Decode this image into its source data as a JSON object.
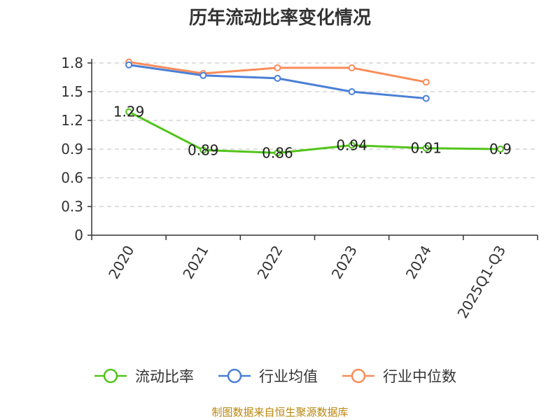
{
  "chart_data": {
    "type": "line",
    "title": "历年流动比率变化情况",
    "categories": [
      "2020",
      "2021",
      "2022",
      "2023",
      "2024",
      "2025Q1-Q3"
    ],
    "series": [
      {
        "name": "流动比率",
        "color": "#52c41a",
        "values": [
          1.29,
          0.89,
          0.86,
          0.94,
          0.91,
          0.9
        ],
        "labels": [
          "1.29",
          "0.89",
          "0.86",
          "0.94",
          "0.91",
          "0.9"
        ]
      },
      {
        "name": "行业均值",
        "color": "#4a7fd6",
        "values": [
          1.78,
          1.67,
          1.64,
          1.5,
          1.43,
          null
        ]
      },
      {
        "name": "行业中位数",
        "color": "#fa8c5a",
        "values": [
          1.81,
          1.69,
          1.75,
          1.75,
          1.6,
          null
        ]
      }
    ],
    "y_ticks": [
      "0",
      "0.3",
      "0.6",
      "0.9",
      "1.2",
      "1.5",
      "1.8"
    ],
    "ylim": [
      0,
      1.8
    ],
    "grid": true,
    "legend_position": "bottom",
    "xlabel": "",
    "ylabel": ""
  },
  "footer": "制图数据来自恒生聚源数据库"
}
